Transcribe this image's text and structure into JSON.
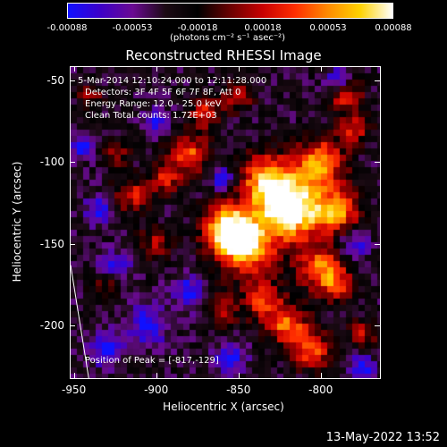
{
  "colorbar": {
    "ticks": [
      "-0.00088",
      "-0.00053",
      "-0.00018",
      "0.00018",
      "0.00053",
      "0.00088"
    ],
    "units": "(photons cm⁻² s⁻¹ asec⁻²)"
  },
  "chart_data": {
    "type": "heatmap",
    "title": "Reconstructed RHESSI Image",
    "xlabel": "Heliocentric X (arcsec)",
    "ylabel": "Heliocentric Y (arcsec)",
    "xlim": [
      -952,
      -764
    ],
    "ylim": [
      -232,
      -42
    ],
    "x_ticks": [
      "-950",
      "-900",
      "-850",
      "-800"
    ],
    "y_ticks": [
      "-50",
      "-100",
      "-150",
      "-200"
    ],
    "x_tick_values": [
      -950,
      -900,
      -850,
      -800
    ],
    "y_tick_values": [
      -50,
      -100,
      -150,
      -200
    ],
    "value_range": [
      -0.00088,
      0.00088
    ],
    "colormap": [
      "#1010ff",
      "#3d00c8",
      "#6a0a92",
      "#1c0a14",
      "#000000",
      "#6a0000",
      "#c80000",
      "#ff2e00",
      "#ff8a00",
      "#ffd200",
      "#ffffff"
    ],
    "peak": {
      "x": -817,
      "y": -129
    },
    "limb_line": [
      [
        -952,
        -163
      ],
      [
        -941,
        -232
      ]
    ],
    "annotations": [
      "5-Mar-2014 12:10:24.000 to 12:11:28.000",
      "Detectors: 3F 4F 5F 6F 7F 8F, Att 0",
      "Energy Range: 12.0 - 25.0 keV",
      "Clean     Total counts: 1.72E+03"
    ],
    "peak_label": "Position of Peak = [-817,-129]"
  },
  "footer": {
    "timestamp": "13-May-2022 13:52"
  }
}
